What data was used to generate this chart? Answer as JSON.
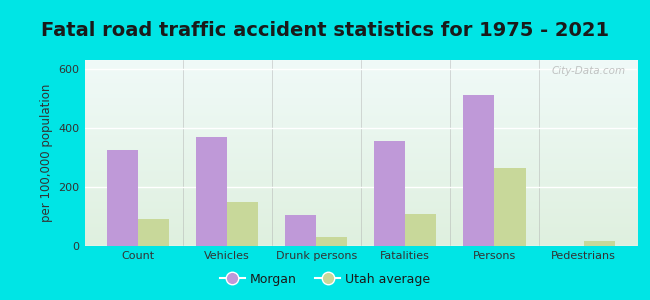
{
  "title": "Fatal road traffic accident statistics for 1975 - 2021",
  "categories": [
    "Count",
    "Vehicles",
    "Drunk persons",
    "Fatalities",
    "Persons",
    "Pedestrians"
  ],
  "morgan_values": [
    325,
    370,
    105,
    355,
    510,
    0
  ],
  "utah_values": [
    90,
    150,
    30,
    110,
    265,
    18
  ],
  "morgan_color": "#bf99d8",
  "utah_color": "#c8d89a",
  "ylabel": "per 100,000 population",
  "ylim": [
    0,
    630
  ],
  "yticks": [
    0,
    200,
    400,
    600
  ],
  "bar_width": 0.35,
  "outer_bg": "#00e5e5",
  "plot_bg_top": "#f0faf8",
  "plot_bg_bottom": "#dff0df",
  "title_fontsize": 14,
  "axis_label_fontsize": 8.5,
  "tick_fontsize": 8,
  "legend_labels": [
    "Morgan",
    "Utah average"
  ],
  "watermark": "City-Data.com"
}
